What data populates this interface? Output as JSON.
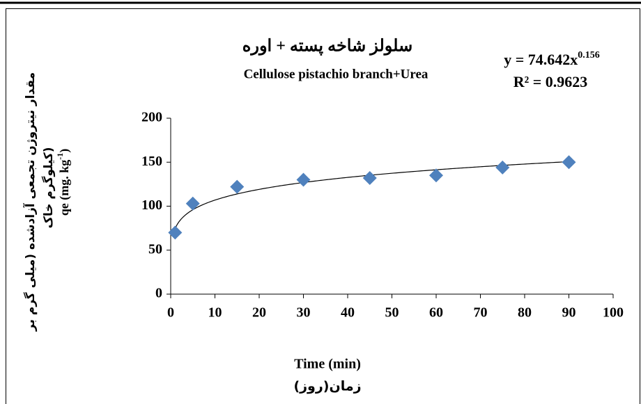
{
  "chart_data": {
    "type": "scatter",
    "title": "سلولز شاخه پسته + اوره",
    "subtitle": "Cellulose pistachio branch+Urea",
    "y_label_lines": [
      "مقدار نیتروژن تجمعی آزادشده (میلی گرم بر",
      "کیلوگرم خاک)"
    ],
    "y_label_unit": {
      "text": "qe (mg. kg",
      "sup": "-1",
      "close": ")"
    },
    "x_label": "Time (min)",
    "x_label_2": "زمان(روز)",
    "x": [
      1,
      5,
      15,
      30,
      45,
      60,
      75,
      90
    ],
    "series": [
      {
        "name": "qe",
        "color": "#4f81bd",
        "values": [
          70,
          103,
          122,
          130,
          132,
          135,
          144,
          150
        ]
      }
    ],
    "trendline": {
      "lhs": "y =",
      "coefficient": 74.642,
      "variable": "x",
      "exponent": 0.156,
      "r2_label": "R² =",
      "r2": 0.9623
    },
    "xlim": [
      0,
      100
    ],
    "xticks": [
      0,
      10,
      20,
      30,
      40,
      50,
      60,
      70,
      80,
      90,
      100
    ],
    "ylim": [
      0,
      200
    ],
    "yticks": [
      0,
      50,
      100,
      150,
      200
    ]
  }
}
